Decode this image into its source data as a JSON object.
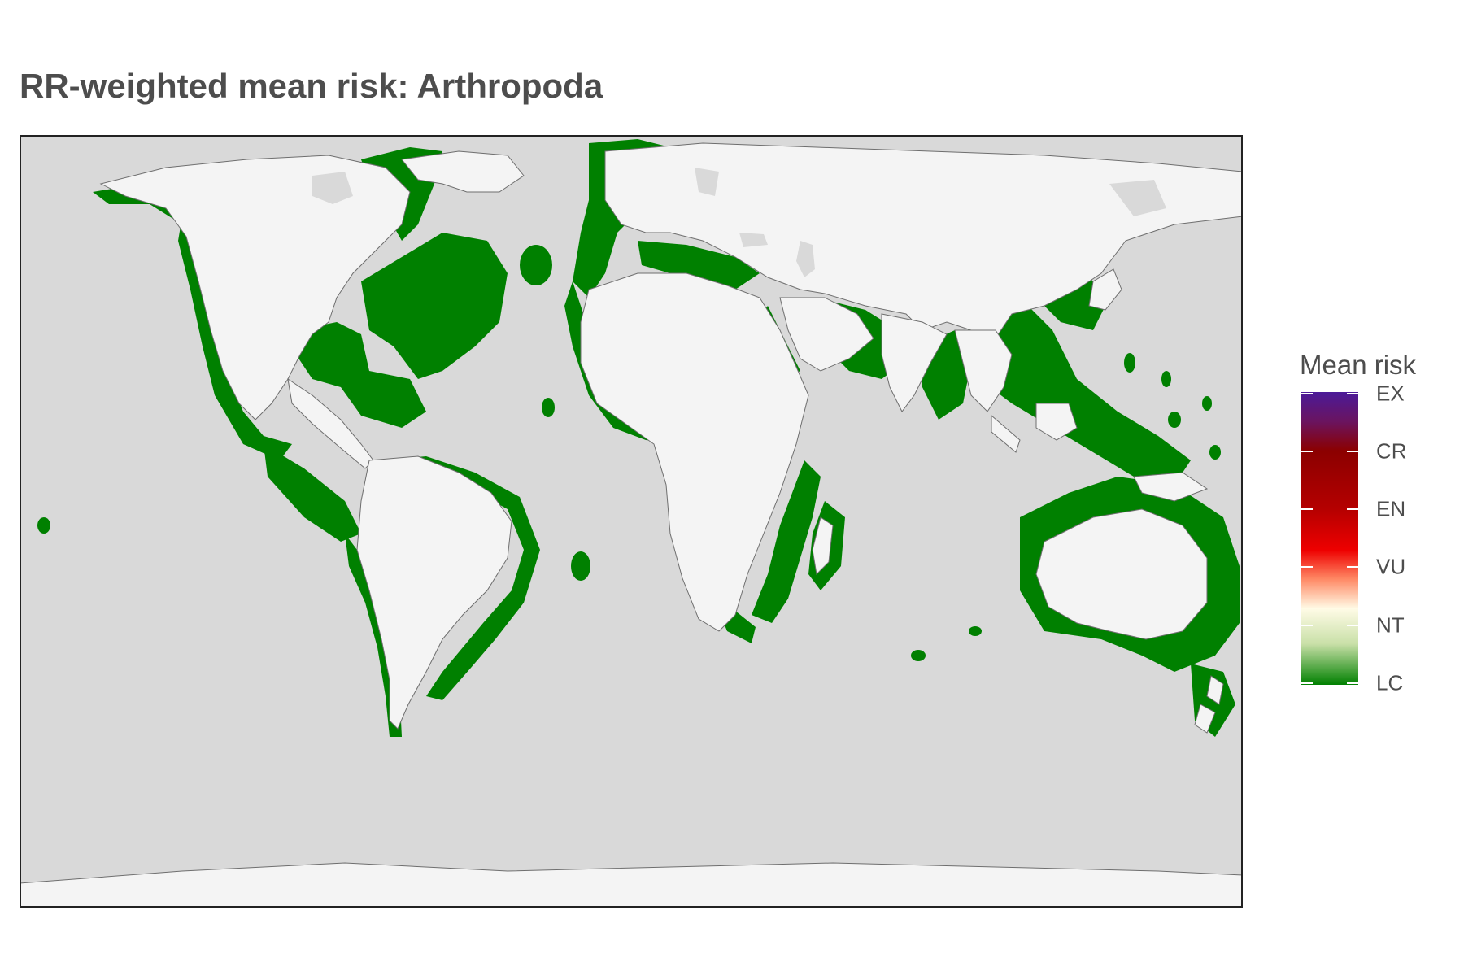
{
  "title": "RR-weighted mean risk: Arthropoda",
  "colors": {
    "ocean": "#d9d9d9",
    "land": "#f4f4f4",
    "coastline": "#6e6e6e",
    "risk_LC": "#008000",
    "risk_NT": "#fffbe6",
    "risk_VU": "#ee0000",
    "risk_EN": "#b50000",
    "risk_CR": "#8b0000",
    "risk_EX": "#4b1a99"
  },
  "legend": {
    "title": "Mean risk",
    "levels": [
      "EX",
      "CR",
      "EN",
      "VU",
      "NT",
      "LC"
    ]
  }
}
